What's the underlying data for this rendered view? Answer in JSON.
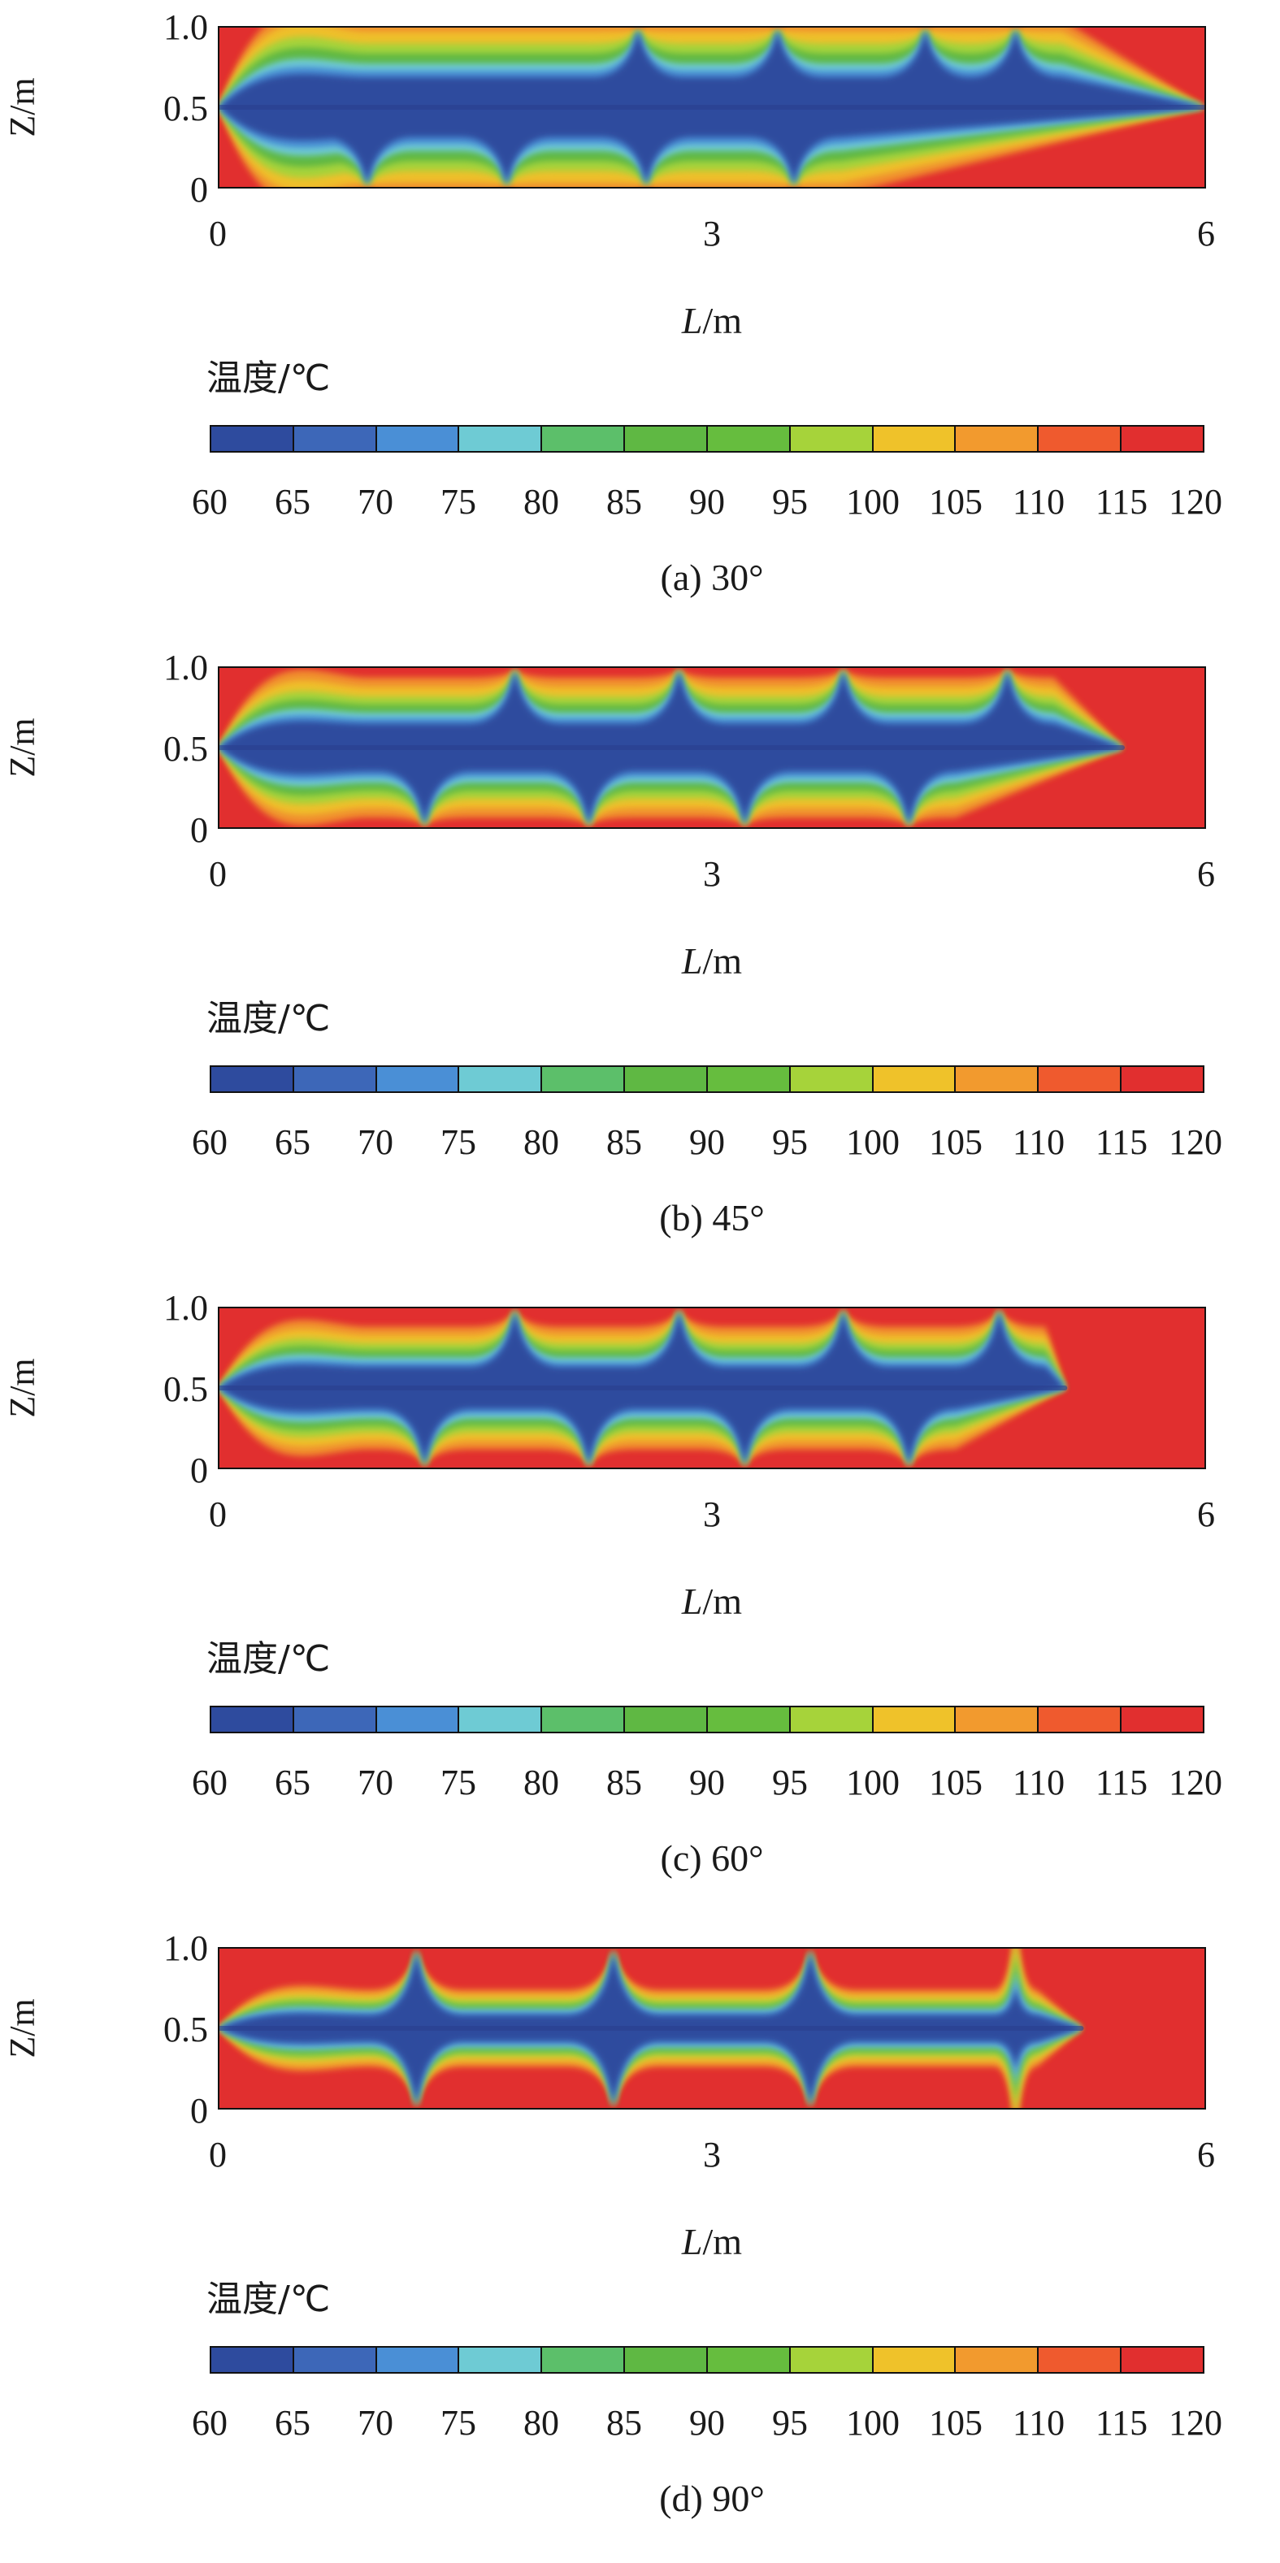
{
  "chart_data": [
    {
      "type": "heatmap",
      "caption": "(a) 30°",
      "xlabel_var": "L",
      "xlabel_unit": "/m",
      "ylabel": "Z/m",
      "xlim": [
        0,
        6
      ],
      "ylim": [
        0,
        1
      ],
      "x_ticks": [
        "0",
        "3",
        "6"
      ],
      "y_ticks": [
        "0",
        "0.5",
        "1.0"
      ],
      "colorbar_title": "温度/℃",
      "colorbar_ticks": [
        "60",
        "65",
        "70",
        "75",
        "80",
        "85",
        "90",
        "95",
        "100",
        "105",
        "110",
        "115",
        "120"
      ],
      "colorbar_colors": [
        "#2e4b9e",
        "#3d67b8",
        "#4a8fd6",
        "#6ecbd4",
        "#5cbf6a",
        "#5fb843",
        "#66bd3e",
        "#a6d33a",
        "#efc22a",
        "#f29a2e",
        "#ef5a2e",
        "#e12f2f"
      ],
      "cold_core": {
        "start": [
          0,
          0.5
        ],
        "tip": [
          6,
          0.5
        ],
        "core_width": 0.5
      },
      "vortex_fronts": [
        {
          "x_bottom": 0.9,
          "x_top": 2.55,
          "side": "bottom"
        },
        {
          "x_bottom": 1.75,
          "x_top": 3.4,
          "side": "bottom"
        },
        {
          "x_bottom": 2.6,
          "x_top": 4.3,
          "side": "bottom"
        },
        {
          "x_bottom": 3.5,
          "x_top": 4.85,
          "side": "bottom"
        }
      ]
    },
    {
      "type": "heatmap",
      "caption": "(b) 45°",
      "xlabel_var": "L",
      "xlabel_unit": "/m",
      "ylabel": "Z/m",
      "xlim": [
        0,
        6
      ],
      "ylim": [
        0,
        1
      ],
      "x_ticks": [
        "0",
        "3",
        "6"
      ],
      "y_ticks": [
        "0",
        "0.5",
        "1.0"
      ],
      "colorbar_title": "温度/℃",
      "colorbar_ticks": [
        "60",
        "65",
        "70",
        "75",
        "80",
        "85",
        "90",
        "95",
        "100",
        "105",
        "110",
        "115",
        "120"
      ],
      "colorbar_colors": [
        "#2e4b9e",
        "#3d67b8",
        "#4a8fd6",
        "#6ecbd4",
        "#5cbf6a",
        "#5fb843",
        "#66bd3e",
        "#a6d33a",
        "#efc22a",
        "#f29a2e",
        "#ef5a2e",
        "#e12f2f"
      ],
      "cold_core": {
        "start": [
          0,
          0.5
        ],
        "tip": [
          5.5,
          0.5
        ],
        "core_width": 0.4
      },
      "vortex_fronts": [
        {
          "x_bottom": 1.25,
          "x_top": 1.8
        },
        {
          "x_bottom": 2.25,
          "x_top": 2.8
        },
        {
          "x_bottom": 3.2,
          "x_top": 3.8
        },
        {
          "x_bottom": 4.2,
          "x_top": 4.8
        }
      ]
    },
    {
      "type": "heatmap",
      "caption": "(c) 60°",
      "xlabel_var": "L",
      "xlabel_unit": "/m",
      "ylabel": "Z/m",
      "xlim": [
        0,
        6
      ],
      "ylim": [
        0,
        1
      ],
      "x_ticks": [
        "0",
        "3",
        "6"
      ],
      "y_ticks": [
        "0",
        "0.5",
        "1.0"
      ],
      "colorbar_title": "温度/℃",
      "colorbar_ticks": [
        "60",
        "65",
        "70",
        "75",
        "80",
        "85",
        "90",
        "95",
        "100",
        "105",
        "110",
        "115",
        "120"
      ],
      "colorbar_colors": [
        "#2e4b9e",
        "#3d67b8",
        "#4a8fd6",
        "#6ecbd4",
        "#5cbf6a",
        "#5fb843",
        "#66bd3e",
        "#a6d33a",
        "#efc22a",
        "#f29a2e",
        "#ef5a2e",
        "#e12f2f"
      ],
      "cold_core": {
        "start": [
          0,
          0.5
        ],
        "tip": [
          5.15,
          0.5
        ],
        "core_width": 0.35
      },
      "vortex_fronts": [
        {
          "x_bottom": 1.25,
          "x_top": 1.8
        },
        {
          "x_bottom": 2.25,
          "x_top": 2.8
        },
        {
          "x_bottom": 3.2,
          "x_top": 3.8
        },
        {
          "x_bottom": 4.2,
          "x_top": 4.75
        }
      ]
    },
    {
      "type": "heatmap",
      "caption": "(d) 90°",
      "xlabel_var": "L",
      "xlabel_unit": "/m",
      "ylabel": "Z/m",
      "xlim": [
        0,
        6
      ],
      "ylim": [
        0,
        1
      ],
      "x_ticks": [
        "0",
        "3",
        "6"
      ],
      "y_ticks": [
        "0",
        "0.5",
        "1.0"
      ],
      "colorbar_title": "温度/℃",
      "colorbar_ticks": [
        "60",
        "65",
        "70",
        "75",
        "80",
        "85",
        "90",
        "95",
        "100",
        "105",
        "110",
        "115",
        "120"
      ],
      "colorbar_colors": [
        "#2e4b9e",
        "#3d67b8",
        "#4a8fd6",
        "#6ecbd4",
        "#5cbf6a",
        "#5fb843",
        "#66bd3e",
        "#a6d33a",
        "#efc22a",
        "#f29a2e",
        "#ef5a2e",
        "#e12f2f"
      ],
      "cold_core": {
        "start": [
          0,
          0.5
        ],
        "tip": [
          5.25,
          0.5
        ],
        "core_width": 0.22
      },
      "vortex_fronts": [
        {
          "x_bottom": 1.2,
          "x_top": 1.2
        },
        {
          "x_bottom": 2.4,
          "x_top": 2.4
        },
        {
          "x_bottom": 3.6,
          "x_top": 3.6
        },
        {
          "x_bottom": 4.85,
          "x_top": 4.85,
          "small": true
        }
      ]
    }
  ]
}
